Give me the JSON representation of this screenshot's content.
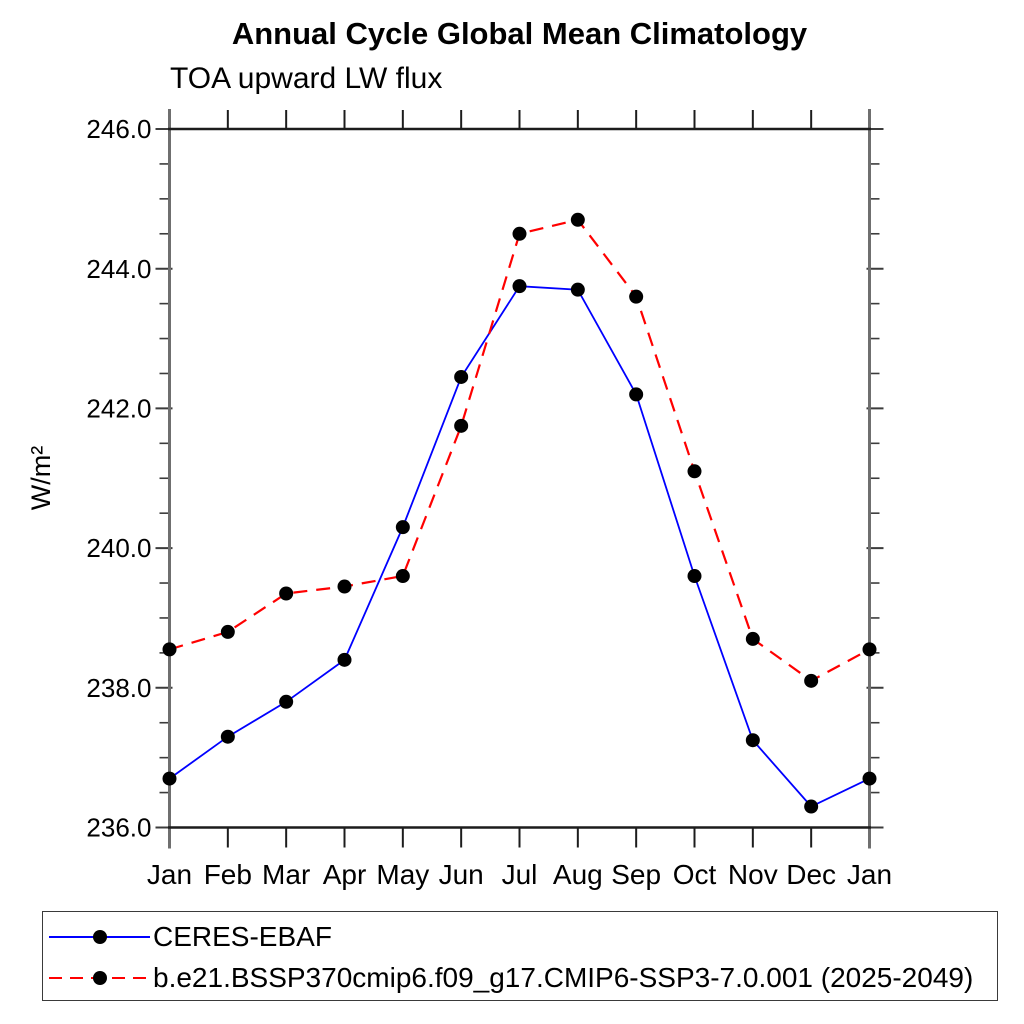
{
  "chart_data": {
    "type": "line",
    "title": "Annual Cycle Global Mean Climatology",
    "subtitle": "TOA upward LW flux",
    "ylabel": "W/m²",
    "categories": [
      "Jan",
      "Feb",
      "Mar",
      "Apr",
      "May",
      "Jun",
      "Jul",
      "Aug",
      "Sep",
      "Oct",
      "Nov",
      "Dec",
      "Jan"
    ],
    "ylim": [
      236.0,
      246.0
    ],
    "y_ticks": [
      {
        "value": 246.0,
        "label": "246.0"
      },
      {
        "value": 244.0,
        "label": "244.0"
      },
      {
        "value": 242.0,
        "label": "242.0"
      },
      {
        "value": 240.0,
        "label": "240.0"
      },
      {
        "value": 238.0,
        "label": "238.0"
      },
      {
        "value": 236.0,
        "label": "236.0"
      }
    ],
    "y_minor_step": 0.5,
    "grid": false,
    "legend_position": "bottom-box",
    "series": [
      {
        "name": "CERES-EBAF",
        "color": "#0000ff",
        "style": "solid",
        "marker": "circle",
        "marker_color": "#000000",
        "values": [
          236.7,
          237.3,
          237.8,
          238.4,
          240.3,
          242.45,
          243.75,
          243.7,
          242.2,
          239.6,
          237.25,
          236.3,
          236.7
        ]
      },
      {
        "name": "b.e21.BSSP370cmip6.f09_g17.CMIP6-SSP3-7.0.001 (2025-2049)",
        "color": "#ff0000",
        "style": "dashed",
        "marker": "circle",
        "marker_color": "#000000",
        "values": [
          238.55,
          238.8,
          239.35,
          239.45,
          239.6,
          241.75,
          244.5,
          244.7,
          243.6,
          241.1,
          238.7,
          238.1,
          238.55
        ]
      }
    ],
    "colors": {
      "left_right_axis": "#6f6f6f",
      "top_bottom_axis": "#1c1c1c",
      "y_tick": "#3c3c3c",
      "x_tick": "#1c1c1c",
      "text": "#000000",
      "background": "#ffffff"
    }
  }
}
